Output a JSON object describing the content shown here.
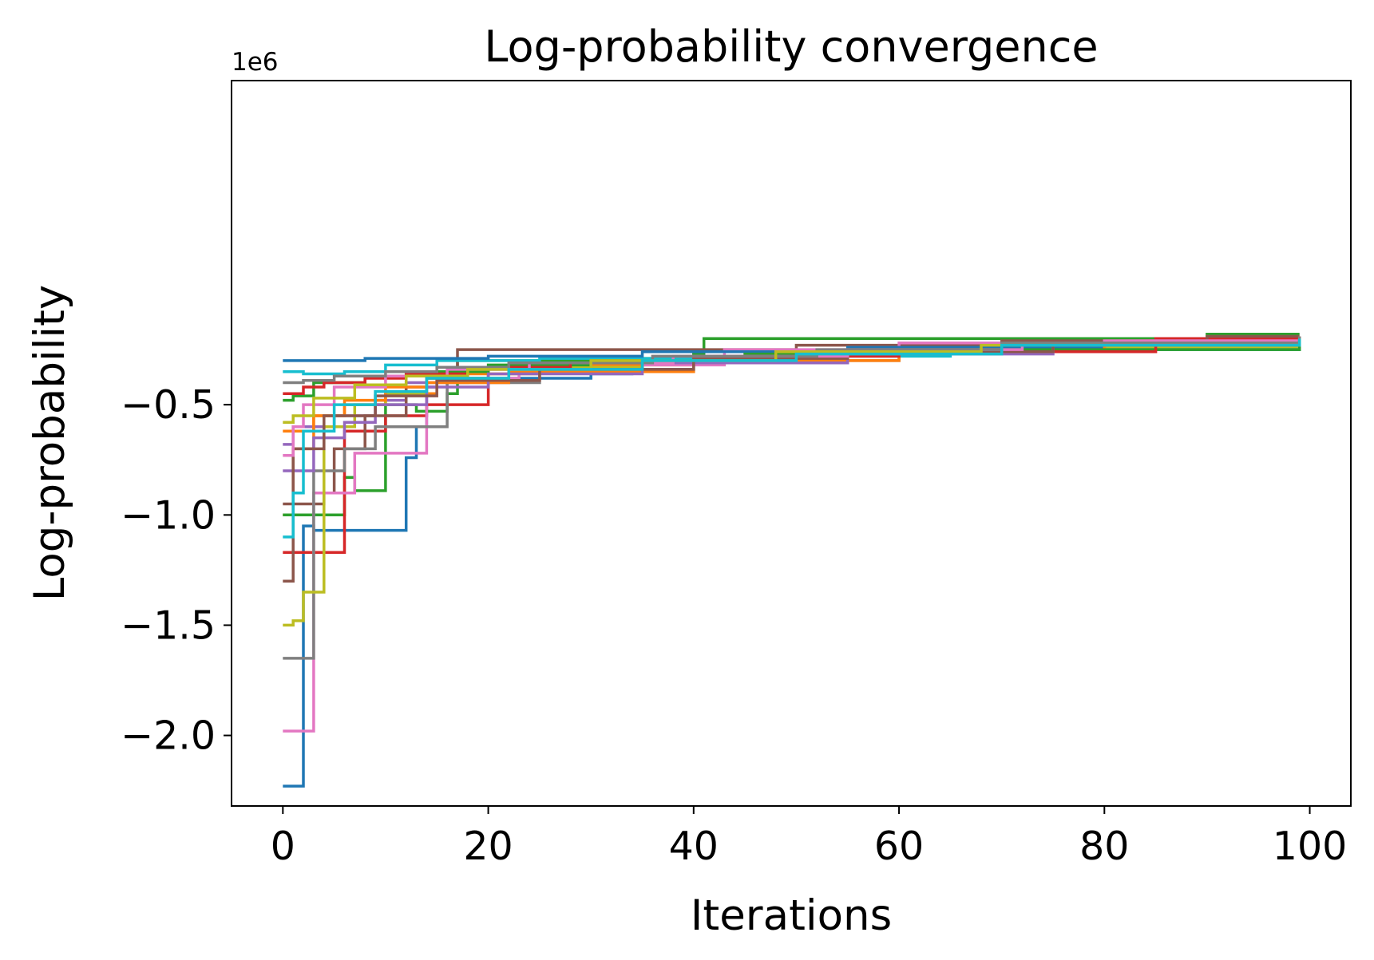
{
  "chart_data": {
    "type": "line",
    "title": "Log-probability convergence",
    "xlabel": "Iterations",
    "ylabel": "Log-probability",
    "y_offset_label": "1e6",
    "xlim": [
      -5,
      104
    ],
    "ylim": [
      -2.32,
      0.97
    ],
    "xticks": [
      0,
      20,
      40,
      60,
      80,
      100
    ],
    "xtick_labels": [
      "0",
      "20",
      "40",
      "60",
      "80",
      "100"
    ],
    "yticks": [
      -0.5,
      -1.0,
      -1.5,
      -2.0
    ],
    "ytick_labels": [
      "−0.5",
      "−1.0",
      "−1.5",
      "−2.0"
    ],
    "grid": false,
    "legend": "none",
    "colors": [
      "#1f77b4",
      "#ff7f0e",
      "#2ca02c",
      "#d62728",
      "#9467bd",
      "#8c564b",
      "#e377c2",
      "#7f7f7f",
      "#bcbd22",
      "#17becf"
    ],
    "series": [
      {
        "x": [
          0,
          1,
          2,
          3,
          11,
          12,
          13,
          14,
          28,
          30,
          34,
          40,
          52,
          53,
          60,
          80,
          99
        ],
        "values": [
          -2.23,
          -2.23,
          -1.05,
          -1.07,
          -1.07,
          -0.74,
          -0.6,
          -0.38,
          -0.38,
          -0.36,
          -0.34,
          -0.3,
          -0.3,
          -0.27,
          -0.25,
          -0.23,
          -0.2
        ]
      },
      {
        "x": [
          0,
          1,
          3,
          6,
          10,
          15,
          25,
          40,
          60,
          85,
          99
        ],
        "values": [
          -1.0,
          -0.7,
          -0.55,
          -0.5,
          -0.45,
          -0.36,
          -0.32,
          -0.28,
          -0.25,
          -0.22,
          -0.19
        ]
      },
      {
        "x": [
          0,
          1,
          4,
          6,
          7,
          9,
          10,
          13,
          16,
          17,
          30,
          40,
          41,
          60,
          90,
          99
        ],
        "values": [
          -1.0,
          -1.0,
          -1.0,
          -0.83,
          -0.89,
          -0.89,
          -0.5,
          -0.53,
          -0.45,
          -0.3,
          -0.3,
          -0.27,
          -0.2,
          -0.2,
          -0.18,
          -0.18
        ]
      },
      {
        "x": [
          0,
          1,
          2,
          4,
          6,
          10,
          14,
          20,
          35,
          50,
          70,
          84,
          85,
          99
        ],
        "values": [
          -1.17,
          -1.17,
          -1.17,
          -1.17,
          -0.62,
          -0.55,
          -0.5,
          -0.33,
          -0.3,
          -0.27,
          -0.22,
          -0.21,
          -0.2,
          -0.19
        ]
      },
      {
        "x": [
          0,
          1,
          5,
          9,
          12,
          18,
          30,
          45,
          70,
          99
        ],
        "values": [
          -0.68,
          -0.6,
          -0.55,
          -0.48,
          -0.4,
          -0.34,
          -0.31,
          -0.27,
          -0.23,
          -0.2
        ]
      },
      {
        "x": [
          0,
          1,
          4,
          5,
          8,
          12,
          15,
          17,
          30,
          50,
          70,
          90,
          99
        ],
        "values": [
          -1.3,
          -0.95,
          -0.9,
          -0.7,
          -0.55,
          -0.42,
          -0.36,
          -0.25,
          -0.25,
          -0.23,
          -0.21,
          -0.19,
          -0.19
        ]
      },
      {
        "x": [
          0,
          1,
          2,
          3,
          7,
          11,
          14,
          20,
          23,
          35,
          43,
          60,
          80,
          99
        ],
        "values": [
          -1.98,
          -1.98,
          -1.98,
          -0.9,
          -0.72,
          -0.72,
          -0.38,
          -0.38,
          -0.35,
          -0.32,
          -0.25,
          -0.22,
          -0.21,
          -0.2
        ]
      },
      {
        "x": [
          0,
          1,
          2,
          3,
          6,
          9,
          11,
          16,
          25,
          40,
          60,
          99
        ],
        "values": [
          -1.65,
          -1.65,
          -1.65,
          -0.8,
          -0.7,
          -0.6,
          -0.6,
          -0.4,
          -0.35,
          -0.3,
          -0.25,
          -0.2
        ]
      },
      {
        "x": [
          0,
          1,
          2,
          4,
          7,
          10,
          14,
          20,
          35,
          55,
          75,
          99
        ],
        "values": [
          -1.5,
          -1.48,
          -1.35,
          -0.6,
          -0.5,
          -0.45,
          -0.38,
          -0.33,
          -0.29,
          -0.26,
          -0.24,
          -0.23
        ]
      },
      {
        "x": [
          0,
          1,
          2,
          6,
          10,
          15,
          25,
          40,
          65,
          99
        ],
        "values": [
          -0.35,
          -0.35,
          -0.36,
          -0.35,
          -0.32,
          -0.3,
          -0.29,
          -0.28,
          -0.25,
          -0.2
        ]
      },
      {
        "x": [
          0,
          1,
          5,
          8,
          12,
          20,
          35,
          55,
          80,
          99
        ],
        "values": [
          -0.3,
          -0.3,
          -0.3,
          -0.29,
          -0.29,
          -0.28,
          -0.26,
          -0.24,
          -0.22,
          -0.2
        ]
      },
      {
        "x": [
          0,
          1,
          3,
          6,
          10,
          14,
          22,
          40,
          60,
          80,
          99
        ],
        "values": [
          -0.62,
          -0.62,
          -0.55,
          -0.48,
          -0.42,
          -0.4,
          -0.35,
          -0.3,
          -0.26,
          -0.23,
          -0.2
        ]
      },
      {
        "x": [
          0,
          1,
          3,
          8,
          12,
          20,
          30,
          45,
          60,
          99
        ],
        "values": [
          -0.48,
          -0.46,
          -0.4,
          -0.37,
          -0.35,
          -0.32,
          -0.3,
          -0.27,
          -0.25,
          -0.21
        ]
      },
      {
        "x": [
          0,
          2,
          4,
          8,
          12,
          18,
          28,
          42,
          60,
          85,
          99
        ],
        "values": [
          -0.45,
          -0.42,
          -0.4,
          -0.38,
          -0.36,
          -0.33,
          -0.31,
          -0.28,
          -0.26,
          -0.22,
          -0.21
        ]
      },
      {
        "x": [
          0,
          1,
          3,
          6,
          9,
          14,
          20,
          35,
          55,
          75,
          99
        ],
        "values": [
          -0.8,
          -0.8,
          -0.65,
          -0.58,
          -0.5,
          -0.42,
          -0.36,
          -0.31,
          -0.27,
          -0.23,
          -0.21
        ]
      },
      {
        "x": [
          0,
          1,
          4,
          9,
          15,
          25,
          40,
          55,
          75,
          99
        ],
        "values": [
          -0.95,
          -0.7,
          -0.55,
          -0.46,
          -0.39,
          -0.34,
          -0.29,
          -0.26,
          -0.23,
          -0.2
        ]
      },
      {
        "x": [
          0,
          1,
          2,
          5,
          10,
          16,
          24,
          38,
          55,
          72,
          99
        ],
        "values": [
          -0.73,
          -0.6,
          -0.5,
          -0.42,
          -0.37,
          -0.34,
          -0.31,
          -0.28,
          -0.25,
          -0.22,
          -0.2
        ]
      },
      {
        "x": [
          0,
          2,
          5,
          10,
          15,
          22,
          36,
          52,
          70,
          99
        ],
        "values": [
          -0.4,
          -0.39,
          -0.37,
          -0.35,
          -0.33,
          -0.31,
          -0.28,
          -0.25,
          -0.22,
          -0.19
        ]
      },
      {
        "x": [
          0,
          1,
          3,
          7,
          12,
          18,
          30,
          48,
          68,
          99
        ],
        "values": [
          -0.58,
          -0.55,
          -0.47,
          -0.41,
          -0.37,
          -0.34,
          -0.3,
          -0.26,
          -0.23,
          -0.2
        ]
      },
      {
        "x": [
          0,
          1,
          2,
          5,
          9,
          14,
          22,
          35,
          50,
          70,
          99
        ],
        "values": [
          -1.1,
          -0.9,
          -0.62,
          -0.5,
          -0.44,
          -0.38,
          -0.34,
          -0.3,
          -0.27,
          -0.23,
          -0.2
        ]
      }
    ]
  }
}
